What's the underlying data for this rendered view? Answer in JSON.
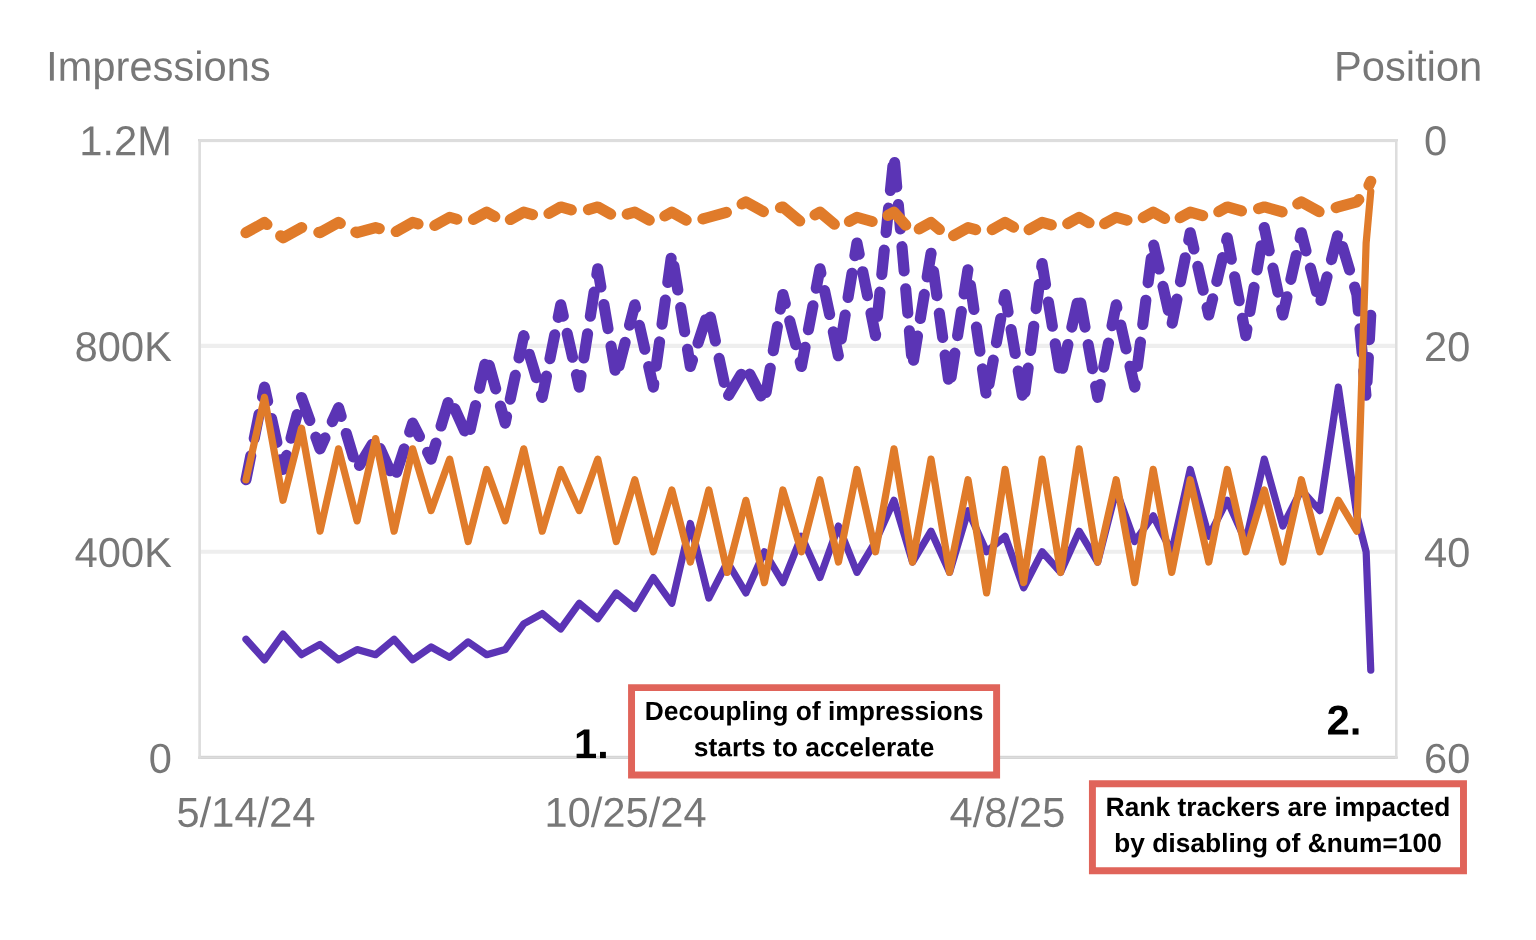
{
  "chart_data": {
    "type": "line",
    "ylabel": "Impressions",
    "y2label": "Position",
    "x": [
      "2024-05-14",
      "2024-05-22",
      "2024-05-30",
      "2024-06-07",
      "2024-06-15",
      "2024-06-23",
      "2024-07-01",
      "2024-07-09",
      "2024-07-17",
      "2024-07-25",
      "2024-08-02",
      "2024-08-10",
      "2024-08-18",
      "2024-08-26",
      "2024-09-03",
      "2024-09-11",
      "2024-09-19",
      "2024-09-27",
      "2024-10-05",
      "2024-10-13",
      "2024-10-21",
      "2024-10-29",
      "2024-11-06",
      "2024-11-14",
      "2024-11-22",
      "2024-11-30",
      "2024-12-08",
      "2024-12-16",
      "2024-12-24",
      "2025-01-01",
      "2025-01-09",
      "2025-01-17",
      "2025-01-25",
      "2025-02-02",
      "2025-02-10",
      "2025-02-18",
      "2025-02-26",
      "2025-03-06",
      "2025-03-14",
      "2025-03-22",
      "2025-03-30",
      "2025-04-07",
      "2025-04-15",
      "2025-04-23",
      "2025-05-01",
      "2025-05-09",
      "2025-05-17",
      "2025-05-25",
      "2025-06-02",
      "2025-06-10",
      "2025-06-18",
      "2025-06-26",
      "2025-07-04",
      "2025-07-12",
      "2025-07-20",
      "2025-07-28",
      "2025-08-05",
      "2025-08-13",
      "2025-08-21",
      "2025-08-29",
      "2025-09-06",
      "2025-09-10",
      "2025-09-12"
    ],
    "series": [
      {
        "color": "#e07b2a",
        "axis": "y2",
        "line_style": "dashed",
        "values": [
          9,
          8,
          9.5,
          8.5,
          9,
          8,
          9,
          8.5,
          9,
          8,
          8.5,
          7.5,
          8,
          7,
          8,
          7,
          7.5,
          6.5,
          7,
          6.5,
          7.5,
          7,
          8,
          7,
          8,
          7.5,
          7,
          6,
          7,
          6.5,
          8,
          7,
          8.5,
          7.5,
          8,
          7,
          9,
          8,
          9.5,
          8.5,
          9,
          8,
          9,
          8,
          8.5,
          7.5,
          8.5,
          7.5,
          8,
          7,
          8,
          7,
          7.5,
          6.5,
          7,
          6.5,
          7,
          6,
          7,
          6.5,
          6,
          5,
          4
        ]
      },
      {
        "color": "#5b34b5",
        "axis": "y",
        "line_style": "dashed",
        "values": [
          540000,
          720000,
          560000,
          700000,
          600000,
          680000,
          560000,
          620000,
          540000,
          650000,
          580000,
          700000,
          620000,
          780000,
          650000,
          820000,
          700000,
          880000,
          720000,
          950000,
          740000,
          880000,
          720000,
          980000,
          760000,
          870000,
          700000,
          760000,
          690000,
          900000,
          760000,
          950000,
          780000,
          1000000,
          820000,
          1170000,
          760000,
          980000,
          720000,
          950000,
          700000,
          900000,
          690000,
          960000,
          740000,
          900000,
          700000,
          880000,
          720000,
          1000000,
          840000,
          1020000,
          860000,
          1010000,
          820000,
          1030000,
          860000,
          1020000,
          880000,
          1020000,
          900000,
          700000,
          860000
        ]
      },
      {
        "color": "#e07b2a",
        "axis": "y2",
        "line_style": "solid",
        "values": [
          33,
          25,
          35,
          28,
          38,
          30,
          37,
          29,
          38,
          30,
          36,
          31,
          39,
          32,
          37,
          30,
          38,
          32,
          36,
          31,
          39,
          33,
          40,
          34,
          41,
          34,
          42,
          35,
          43,
          34,
          40,
          33,
          41,
          32,
          40,
          30,
          41,
          31,
          42,
          33,
          44,
          32,
          43,
          31,
          42,
          30,
          41,
          33,
          43,
          32,
          42,
          33,
          41,
          32,
          40,
          34,
          41,
          33,
          40,
          35,
          38,
          10,
          5
        ]
      },
      {
        "color": "#5b34b5",
        "axis": "y",
        "line_style": "solid",
        "values": [
          230000,
          190000,
          240000,
          200000,
          220000,
          190000,
          210000,
          200000,
          230000,
          190000,
          215000,
          195000,
          225000,
          200000,
          210000,
          260000,
          280000,
          250000,
          300000,
          270000,
          320000,
          290000,
          350000,
          300000,
          455000,
          310000,
          380000,
          320000,
          400000,
          340000,
          430000,
          350000,
          450000,
          360000,
          420000,
          500000,
          380000,
          440000,
          360000,
          480000,
          400000,
          430000,
          330000,
          400000,
          360000,
          440000,
          380000,
          520000,
          420000,
          470000,
          400000,
          560000,
          430000,
          500000,
          420000,
          580000,
          450000,
          520000,
          480000,
          720000,
          470000,
          400000,
          170000
        ]
      }
    ],
    "xlim": [
      "2024-04-24",
      "2025-09-23"
    ],
    "xticks": [
      {
        "value": "2024-05-14",
        "label": "5/14/24"
      },
      {
        "value": "2024-10-25",
        "label": "10/25/24"
      },
      {
        "value": "2025-04-08",
        "label": "4/8/25"
      }
    ],
    "ylim": [
      0,
      1200000
    ],
    "yticks": [
      {
        "value": 0,
        "label": "0"
      },
      {
        "value": 400000,
        "label": "400K"
      },
      {
        "value": 800000,
        "label": "800K"
      },
      {
        "value": 1200000,
        "label": "1.2M"
      }
    ],
    "y2lim": [
      60,
      0
    ],
    "y2ticks": [
      0,
      20,
      40,
      60
    ],
    "grid": "y",
    "marker": "none",
    "annotations": [
      "1.",
      "Decoupling of impressions\nstarts to accelerate",
      "2.",
      "Rank trackers are impacted\nby disabling of &num=100"
    ]
  }
}
